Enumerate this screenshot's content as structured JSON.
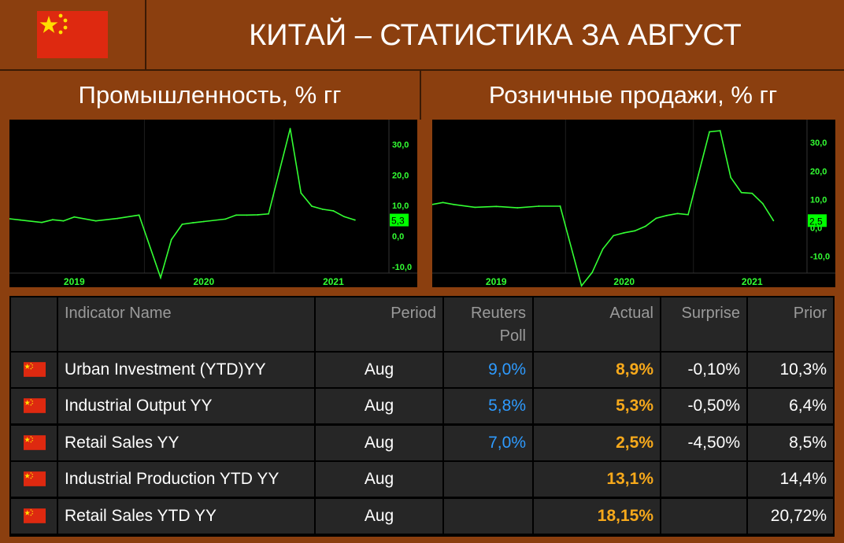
{
  "header": {
    "title": "КИТАЙ – СТАТИСТИКА ЗА АВГУСТ"
  },
  "colors": {
    "background": "#8b3f0f",
    "line": "#33ff33",
    "flag_red": "#de2910",
    "flag_star": "#ffde00",
    "poll": "#2e9bff",
    "actual": "#f7a91b"
  },
  "chart_data": [
    {
      "type": "line",
      "title": "Промышленность, % гг",
      "x_labels": [
        "2019",
        "2020",
        "2021"
      ],
      "ylim": [
        -12,
        37
      ],
      "yticks": [
        "30,0",
        "20,0",
        "10,0",
        "0,0",
        "-10,0"
      ],
      "last_label": "5,3",
      "points": [
        {
          "x": "2018-12",
          "y": 5.7
        },
        {
          "x": "2019-01",
          "y": 5.3
        },
        {
          "x": "2019-03",
          "y": 4.5
        },
        {
          "x": "2019-04",
          "y": 5.4
        },
        {
          "x": "2019-05",
          "y": 5.0
        },
        {
          "x": "2019-06",
          "y": 6.3
        },
        {
          "x": "2019-08",
          "y": 5.0
        },
        {
          "x": "2019-10",
          "y": 5.8
        },
        {
          "x": "2019-12",
          "y": 6.9
        },
        {
          "x": "2020-02",
          "y": -13.5
        },
        {
          "x": "2020-03",
          "y": -1.1
        },
        {
          "x": "2020-04",
          "y": 3.9
        },
        {
          "x": "2020-05",
          "y": 4.4
        },
        {
          "x": "2020-06",
          "y": 4.8
        },
        {
          "x": "2020-08",
          "y": 5.6
        },
        {
          "x": "2020-09",
          "y": 6.9
        },
        {
          "x": "2020-10",
          "y": 6.9
        },
        {
          "x": "2020-11",
          "y": 7.0
        },
        {
          "x": "2020-12",
          "y": 7.3
        },
        {
          "x": "2021-02",
          "y": 35.1
        },
        {
          "x": "2021-03",
          "y": 14.1
        },
        {
          "x": "2021-04",
          "y": 9.8
        },
        {
          "x": "2021-05",
          "y": 8.8
        },
        {
          "x": "2021-06",
          "y": 8.3
        },
        {
          "x": "2021-07",
          "y": 6.4
        },
        {
          "x": "2021-08",
          "y": 5.3
        }
      ]
    },
    {
      "type": "line",
      "title": "Розничные продажи, % гг",
      "x_labels": [
        "2019",
        "2020",
        "2021"
      ],
      "ylim": [
        -16,
        37
      ],
      "yticks": [
        "30,0",
        "20,0",
        "10,0",
        "0,0",
        "-10,0"
      ],
      "last_label": "2,5",
      "points": [
        {
          "x": "2018-12",
          "y": 8.2
        },
        {
          "x": "2019-01",
          "y": 8.9
        },
        {
          "x": "2019-02",
          "y": 8.2
        },
        {
          "x": "2019-04",
          "y": 7.2
        },
        {
          "x": "2019-06",
          "y": 7.5
        },
        {
          "x": "2019-08",
          "y": 7.0
        },
        {
          "x": "2019-10",
          "y": 7.6
        },
        {
          "x": "2019-12",
          "y": 7.6
        },
        {
          "x": "2020-02",
          "y": -20.5
        },
        {
          "x": "2020-03",
          "y": -15.8
        },
        {
          "x": "2020-04",
          "y": -7.5
        },
        {
          "x": "2020-05",
          "y": -2.8
        },
        {
          "x": "2020-06",
          "y": -1.8
        },
        {
          "x": "2020-07",
          "y": -1.1
        },
        {
          "x": "2020-08",
          "y": 0.5
        },
        {
          "x": "2020-09",
          "y": 3.3
        },
        {
          "x": "2020-10",
          "y": 4.3
        },
        {
          "x": "2020-11",
          "y": 5.0
        },
        {
          "x": "2020-12",
          "y": 4.6
        },
        {
          "x": "2021-02",
          "y": 33.8
        },
        {
          "x": "2021-03",
          "y": 34.2
        },
        {
          "x": "2021-04",
          "y": 17.7
        },
        {
          "x": "2021-05",
          "y": 12.4
        },
        {
          "x": "2021-06",
          "y": 12.1
        },
        {
          "x": "2021-07",
          "y": 8.5
        },
        {
          "x": "2021-08",
          "y": 2.5
        }
      ]
    },
    {
      "type": "table",
      "columns": [
        "Indicator Name",
        "Period",
        "Reuters Poll",
        "Actual",
        "Surprise",
        "Prior"
      ],
      "header": {
        "c0": "Indicator Name",
        "c1": "Period",
        "c2a": "Reuters",
        "c2b": "Poll",
        "c3": "Actual",
        "c4": "Surprise",
        "c5": "Prior"
      },
      "rows": [
        {
          "name": "Urban Investment (YTD)YY",
          "period": "Aug",
          "poll": "9,0%",
          "actual": "8,9%",
          "surprise": "-0,10%",
          "prior": "10,3%"
        },
        {
          "name": "Industrial Output YY",
          "period": "Aug",
          "poll": "5,8%",
          "actual": "5,3%",
          "surprise": "-0,50%",
          "prior": "6,4%"
        },
        {
          "name": "Retail Sales YY",
          "period": "Aug",
          "poll": "7,0%",
          "actual": "2,5%",
          "surprise": "-4,50%",
          "prior": "8,5%"
        },
        {
          "name": "Industrial Production YTD YY",
          "period": "Aug",
          "poll": "",
          "actual": "13,1%",
          "surprise": "",
          "prior": "14,4%"
        },
        {
          "name": "Retail Sales YTD YY",
          "period": "Aug",
          "poll": "",
          "actual": "18,15%",
          "surprise": "",
          "prior": "20,72%"
        }
      ]
    }
  ]
}
